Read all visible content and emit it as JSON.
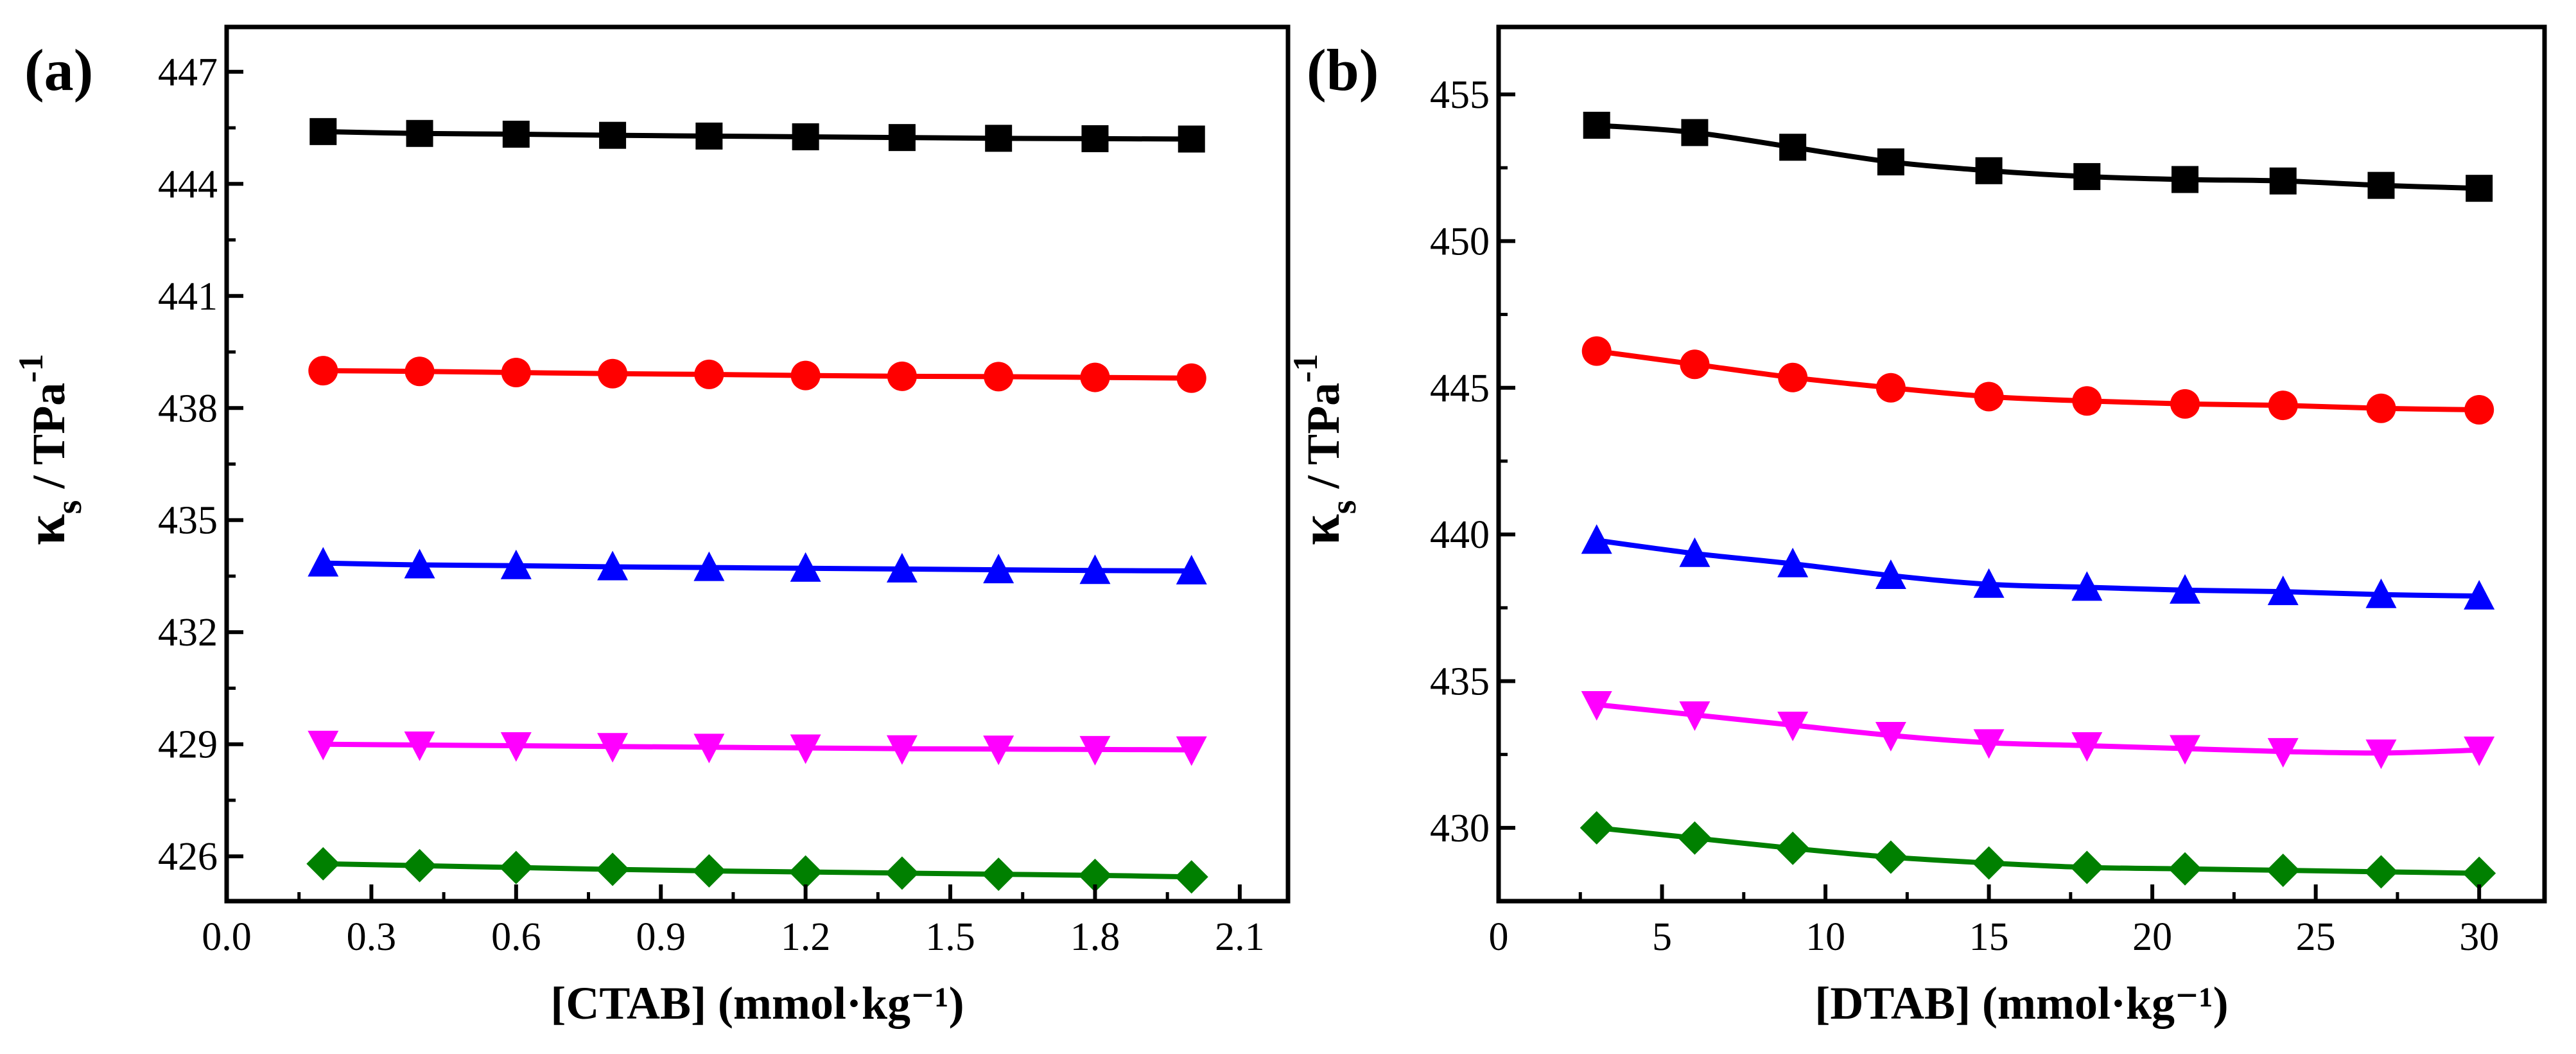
{
  "chart_data": [
    {
      "type": "line",
      "panel_label": "(a)",
      "xlabel": "[CTAB] (mmol·kg⁻¹)",
      "ylabel": "κs / TPa⁻¹",
      "ylabel_main": "κ",
      "ylabel_sub": "s",
      "ylabel_rest": " / TPa",
      "ylabel_sup": "-1",
      "xlim": [
        0.0,
        2.2
      ],
      "ylim": [
        424.8,
        448.2
      ],
      "xticks": [
        0.0,
        0.3,
        0.6,
        0.9,
        1.2,
        1.5,
        1.8,
        2.1
      ],
      "xtick_labels": [
        "0.0",
        "0.3",
        "0.6",
        "0.9",
        "1.2",
        "1.5",
        "1.8",
        "2.1"
      ],
      "yticks": [
        426,
        429,
        432,
        435,
        438,
        441,
        444,
        447
      ],
      "ytick_labels": [
        "426",
        "429",
        "432",
        "435",
        "438",
        "441",
        "444",
        "447"
      ],
      "x": [
        0.2,
        0.4,
        0.6,
        0.8,
        1.0,
        1.2,
        1.4,
        1.6,
        1.8,
        2.0
      ],
      "series": [
        {
          "name": "black",
          "color": "#000000",
          "marker": "square",
          "values": [
            445.4,
            445.35,
            445.33,
            445.3,
            445.28,
            445.26,
            445.24,
            445.22,
            445.21,
            445.2
          ]
        },
        {
          "name": "red",
          "color": "#ff0000",
          "marker": "circle",
          "values": [
            439.0,
            438.98,
            438.95,
            438.92,
            438.9,
            438.87,
            438.85,
            438.84,
            438.82,
            438.8
          ]
        },
        {
          "name": "blue",
          "color": "#0000ff",
          "marker": "triangle-up",
          "values": [
            433.85,
            433.8,
            433.78,
            433.75,
            433.73,
            433.71,
            433.69,
            433.67,
            433.65,
            433.64
          ]
        },
        {
          "name": "magenta",
          "color": "#ff00ff",
          "marker": "triangle-down",
          "values": [
            429.0,
            428.98,
            428.96,
            428.94,
            428.92,
            428.9,
            428.88,
            428.87,
            428.86,
            428.85
          ]
        },
        {
          "name": "green",
          "color": "#008000",
          "marker": "diamond",
          "values": [
            425.8,
            425.75,
            425.7,
            425.65,
            425.61,
            425.58,
            425.55,
            425.52,
            425.49,
            425.45
          ]
        }
      ]
    },
    {
      "type": "line",
      "panel_label": "(b)",
      "xlabel": "[DTAB] (mmol·kg⁻¹)",
      "ylabel": "κs / TPa⁻¹",
      "ylabel_main": "κ",
      "ylabel_sub": "s",
      "ylabel_rest": " / TPa",
      "ylabel_sup": "-1",
      "xlim": [
        0,
        32
      ],
      "ylim": [
        427.5,
        457.3
      ],
      "xticks": [
        0,
        5,
        10,
        15,
        20,
        25,
        30
      ],
      "xtick_labels": [
        "0",
        "5",
        "10",
        "15",
        "20",
        "25",
        "30"
      ],
      "yticks": [
        430,
        435,
        440,
        445,
        450,
        455
      ],
      "ytick_labels": [
        "430",
        "435",
        "440",
        "445",
        "450",
        "455"
      ],
      "x": [
        3,
        6,
        9,
        12,
        15,
        18,
        21,
        24,
        27,
        30
      ],
      "series": [
        {
          "name": "black",
          "color": "#000000",
          "marker": "square",
          "values": [
            453.95,
            453.7,
            453.2,
            452.7,
            452.4,
            452.2,
            452.1,
            452.05,
            451.9,
            451.8
          ]
        },
        {
          "name": "red",
          "color": "#ff0000",
          "marker": "circle",
          "values": [
            446.25,
            445.8,
            445.35,
            445.0,
            444.7,
            444.55,
            444.45,
            444.4,
            444.3,
            444.25
          ]
        },
        {
          "name": "blue",
          "color": "#0000ff",
          "marker": "triangle-up",
          "values": [
            439.8,
            439.35,
            439.0,
            438.6,
            438.3,
            438.2,
            438.1,
            438.05,
            437.95,
            437.9
          ]
        },
        {
          "name": "magenta",
          "color": "#ff00ff",
          "marker": "triangle-down",
          "values": [
            434.2,
            433.85,
            433.5,
            433.15,
            432.9,
            432.8,
            432.7,
            432.6,
            432.55,
            432.65
          ]
        },
        {
          "name": "green",
          "color": "#008000",
          "marker": "diamond",
          "values": [
            430.0,
            429.65,
            429.3,
            429.0,
            428.8,
            428.65,
            428.6,
            428.55,
            428.5,
            428.45
          ]
        }
      ]
    }
  ]
}
